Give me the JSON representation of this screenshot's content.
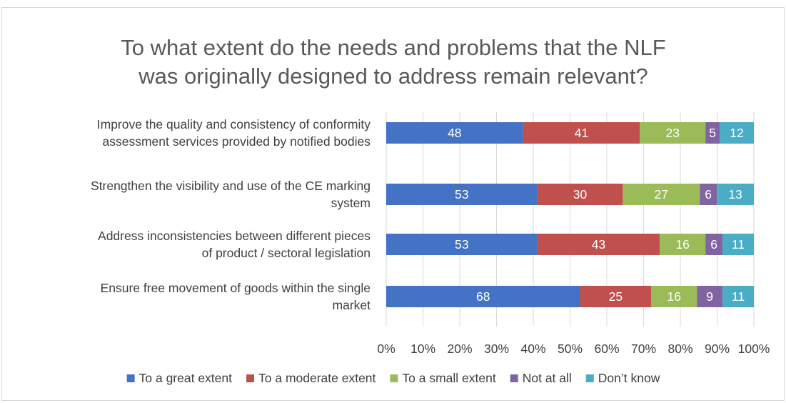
{
  "chart_data": {
    "type": "bar",
    "orientation": "horizontal",
    "stacked": "percent",
    "title": "To what extent do the needs and problems that the NLF was originally designed to address remain relevant?",
    "title_lines": [
      "To what extent do the needs and problems that the NLF",
      "was originally designed to address remain relevant?"
    ],
    "categories": [
      "Improve the quality and consistency of conformity assessment services provided by notified bodies",
      "Strengthen the visibility and use of the CE marking system",
      "Address inconsistencies between different pieces of product / sectoral legislation",
      "Ensure free movement of goods within the single market"
    ],
    "category_lines": [
      [
        "Improve the quality and consistency of conformity",
        "assessment services provided by notified bodies"
      ],
      [
        "Strengthen the visibility and use of the CE marking",
        "system"
      ],
      [
        "Address inconsistencies between different pieces",
        "of product / sectoral legislation"
      ],
      [
        "Ensure free movement of goods within the single",
        "market"
      ]
    ],
    "series": [
      {
        "name": "To a great extent",
        "color": "#4472c4",
        "values": [
          48,
          53,
          53,
          68
        ]
      },
      {
        "name": "To a moderate extent",
        "color": "#c0504d",
        "values": [
          41,
          30,
          43,
          25
        ]
      },
      {
        "name": "To a small extent",
        "color": "#9bbb59",
        "values": [
          23,
          27,
          16,
          16
        ]
      },
      {
        "name": "Not at all",
        "color": "#8064a2",
        "values": [
          5,
          6,
          6,
          9
        ]
      },
      {
        "name": "Don’t know",
        "color": "#4bacc6",
        "values": [
          12,
          13,
          11,
          11
        ]
      }
    ],
    "xlim": [
      0,
      100
    ],
    "x_ticks": [
      "0%",
      "10%",
      "20%",
      "30%",
      "40%",
      "50%",
      "60%",
      "70%",
      "80%",
      "90%",
      "100%"
    ],
    "grid": true,
    "legend": "bottom"
  }
}
